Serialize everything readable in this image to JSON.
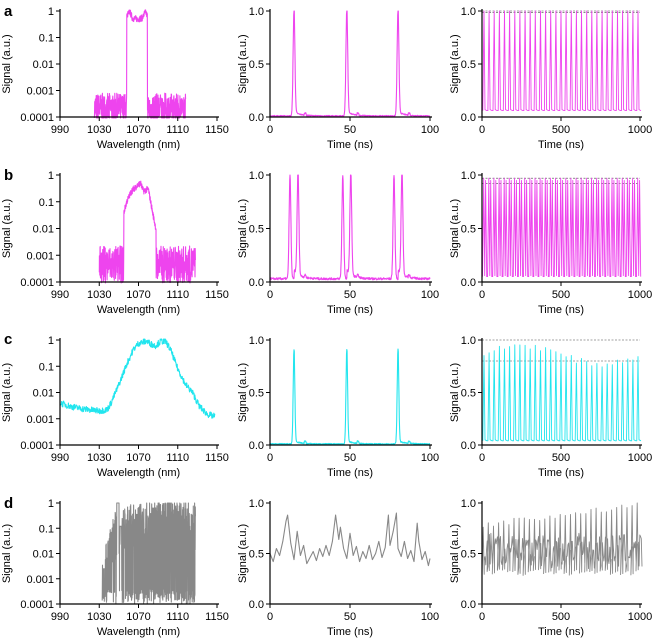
{
  "chart_data": [
    {
      "id": "a1",
      "row": 0,
      "col": 0,
      "type": "line",
      "scale": "log",
      "color": "#ee44ee",
      "xlabel": "Wavelength (nm)",
      "ylabel": "Signal (a.u.)",
      "xlim": [
        990,
        1150
      ],
      "ylim": [
        0.0001,
        1
      ],
      "xticks": [
        "990",
        "1030",
        "1070",
        "1110",
        "1150"
      ],
      "yticks": [
        "0.0001",
        "0.001",
        "0.01",
        "0.1",
        "1"
      ],
      "spectrum": {
        "x0": 1025,
        "x1": 1118,
        "rise": 1058,
        "fall": 1079,
        "floor": 0.0002,
        "noise": 0.6,
        "env": [
          [
            1058,
            0.65
          ],
          [
            1061,
            0.95
          ],
          [
            1064,
            0.52
          ],
          [
            1070,
            0.5
          ],
          [
            1074,
            0.55
          ],
          [
            1077,
            0.95
          ],
          [
            1079,
            0.65
          ]
        ]
      }
    },
    {
      "id": "a2",
      "row": 0,
      "col": 1,
      "type": "line",
      "scale": "linear",
      "color": "#ee44ee",
      "xlabel": "Time (ns)",
      "ylabel": "Signal (a.u.)",
      "xlim": [
        0,
        100
      ],
      "ylim": [
        0,
        1
      ],
      "xticks": [
        "0",
        "50",
        "100"
      ],
      "yticks": [
        "0.0",
        "0.5",
        "1.0"
      ],
      "pulses": {
        "centers": [
          15,
          48,
          80
        ],
        "sub": [
          0
        ],
        "width": 0.55,
        "height": 1.0,
        "base": 0.01,
        "tail": 0.04,
        "noise": 0.005
      }
    },
    {
      "id": "a3",
      "row": 0,
      "col": 2,
      "type": "line",
      "scale": "linear",
      "color": "#ee44ee",
      "xlabel": "Time (ns)",
      "ylabel": "Signal (a.u.)",
      "xlim": [
        0,
        1000
      ],
      "ylim": [
        0,
        1
      ],
      "xticks": [
        "0",
        "500",
        "1000"
      ],
      "yticks": [
        "0.0",
        "0.5",
        "1.0"
      ],
      "train": {
        "period": 32.5,
        "start": 15,
        "top": 1.0,
        "base": 0.06,
        "lines": [
          1.0,
          0.985
        ],
        "mode": "const"
      }
    },
    {
      "id": "b1",
      "row": 1,
      "col": 0,
      "type": "line",
      "scale": "log",
      "color": "#ee44ee",
      "xlabel": "Wavelength (nm)",
      "ylabel": "Signal (a.u.)",
      "xlim": [
        990,
        1150
      ],
      "ylim": [
        0.0001,
        1
      ],
      "xticks": [
        "990",
        "1030",
        "1070",
        "1110",
        "1150"
      ],
      "yticks": [
        "0.0001",
        "0.001",
        "0.01",
        "0.1",
        "1"
      ],
      "spectrum": {
        "x0": 1030,
        "x1": 1128,
        "rise": 1055,
        "fall": 1088,
        "floor": 0.00045,
        "noise": 0.7,
        "env": [
          [
            1048,
            0.003
          ],
          [
            1053,
            0.02
          ],
          [
            1058,
            0.1
          ],
          [
            1063,
            0.25
          ],
          [
            1067,
            0.35
          ],
          [
            1072,
            0.5
          ],
          [
            1075,
            0.25
          ],
          [
            1080,
            0.3
          ],
          [
            1085,
            0.03
          ],
          [
            1090,
            0.004
          ]
        ]
      }
    },
    {
      "id": "b2",
      "row": 1,
      "col": 1,
      "type": "line",
      "scale": "linear",
      "color": "#ee44ee",
      "xlabel": "Time (ns)",
      "ylabel": "Signal (a.u.)",
      "xlim": [
        0,
        100
      ],
      "ylim": [
        0,
        1
      ],
      "xticks": [
        "0",
        "50",
        "100"
      ],
      "yticks": [
        "0.0",
        "0.5",
        "1.0"
      ],
      "pulses": {
        "centers": [
          15,
          48,
          80
        ],
        "sub": [
          -2.5,
          2.5
        ],
        "width": 0.55,
        "height": 0.97,
        "base": 0.03,
        "tail": 0.08,
        "noise": 0.01
      }
    },
    {
      "id": "b3",
      "row": 1,
      "col": 2,
      "type": "line",
      "scale": "linear",
      "color": "#ee44ee",
      "xlabel": "Time (ns)",
      "ylabel": "Signal (a.u.)",
      "xlim": [
        0,
        1000
      ],
      "ylim": [
        0,
        1
      ],
      "xticks": [
        "0",
        "500",
        "1000"
      ],
      "yticks": [
        "0.0",
        "0.5",
        "1.0"
      ],
      "train": {
        "period": 32.5,
        "start": 13,
        "top": 0.97,
        "base": 0.05,
        "lines": [
          0.97,
          0.92
        ],
        "mode": "double"
      }
    },
    {
      "id": "c1",
      "row": 2,
      "col": 0,
      "type": "line",
      "scale": "log",
      "color": "#22e5ee",
      "xlabel": "Wavelength (nm)",
      "ylabel": "Signal (a.u.)",
      "xlim": [
        990,
        1150
      ],
      "ylim": [
        0.0001,
        1
      ],
      "xticks": [
        "990",
        "1030",
        "1070",
        "1110",
        "1150"
      ],
      "yticks": [
        "0.0001",
        "0.001",
        "0.01",
        "0.1",
        "1"
      ],
      "spectrum": {
        "x0": 990,
        "x1": 1148,
        "rise": 990,
        "fall": 1148,
        "floor": 0.0005,
        "noise": 0.45,
        "env": [
          [
            990,
            0.004
          ],
          [
            1000,
            0.003
          ],
          [
            1010,
            0.0025
          ],
          [
            1020,
            0.0022
          ],
          [
            1030,
            0.002
          ],
          [
            1038,
            0.0022
          ],
          [
            1042,
            0.004
          ],
          [
            1050,
            0.02
          ],
          [
            1058,
            0.12
          ],
          [
            1065,
            0.45
          ],
          [
            1070,
            0.75
          ],
          [
            1078,
            0.9
          ],
          [
            1083,
            0.7
          ],
          [
            1087,
            0.6
          ],
          [
            1093,
            0.9
          ],
          [
            1098,
            0.85
          ],
          [
            1103,
            0.4
          ],
          [
            1110,
            0.08
          ],
          [
            1118,
            0.02
          ],
          [
            1125,
            0.01
          ],
          [
            1132,
            0.003
          ],
          [
            1140,
            0.0015
          ],
          [
            1148,
            0.0012
          ]
        ]
      }
    },
    {
      "id": "c2",
      "row": 2,
      "col": 1,
      "type": "line",
      "scale": "linear",
      "color": "#22e5ee",
      "xlabel": "Time (ns)",
      "ylabel": "Signal (a.u.)",
      "xlim": [
        0,
        100
      ],
      "ylim": [
        0,
        1
      ],
      "xticks": [
        "0",
        "50",
        "100"
      ],
      "yticks": [
        "0.0",
        "0.5",
        "1.0"
      ],
      "pulses": {
        "centers": [
          15,
          48,
          80
        ],
        "sub": [
          0
        ],
        "width": 0.5,
        "height": 0.9,
        "base": 0.01,
        "tail": 0.03,
        "noise": 0.005
      }
    },
    {
      "id": "c3",
      "row": 2,
      "col": 2,
      "type": "line",
      "scale": "linear",
      "color": "#22e5ee",
      "xlabel": "Time (ns)",
      "ylabel": "Signal (a.u.)",
      "xlim": [
        0,
        1000
      ],
      "ylim": [
        0,
        1
      ],
      "xticks": [
        "0",
        "500",
        "1000"
      ],
      "yticks": [
        "0.0",
        "0.5",
        "1.0"
      ],
      "train": {
        "period": 32.5,
        "start": 15,
        "top": 0.92,
        "base": 0.04,
        "lines": [
          1.0,
          0.8
        ],
        "mode": "var"
      }
    },
    {
      "id": "d1",
      "row": 3,
      "col": 0,
      "type": "line",
      "scale": "log",
      "color": "#888888",
      "xlabel": "Wavelength (nm)",
      "ylabel": "Signal (a.u.)",
      "xlim": [
        990,
        1150
      ],
      "ylim": [
        0.0001,
        1
      ],
      "xticks": [
        "990",
        "1030",
        "1070",
        "1110",
        "1150"
      ],
      "yticks": [
        "0.0001",
        "0.001",
        "0.01",
        "0.1",
        "1"
      ],
      "spectrum": {
        "x0": 1033,
        "x1": 1128,
        "rise": 1033,
        "fall": 1128,
        "floor": 0.0001,
        "noise": 2.0,
        "dense": true,
        "env": [
          [
            1033,
            0.0004
          ],
          [
            1037,
            0.002
          ],
          [
            1041,
            0.005
          ],
          [
            1046,
            0.02
          ],
          [
            1050,
            0.03
          ],
          [
            1060,
            0.04
          ],
          [
            1075,
            0.05
          ],
          [
            1090,
            0.06
          ],
          [
            1100,
            0.07
          ],
          [
            1115,
            0.06
          ],
          [
            1128,
            0.05
          ]
        ]
      }
    },
    {
      "id": "d2",
      "row": 3,
      "col": 1,
      "type": "line",
      "scale": "linear",
      "color": "#888888",
      "xlabel": "Time (ns)",
      "ylabel": "Signal (a.u.)",
      "xlim": [
        0,
        100
      ],
      "ylim": [
        0,
        1
      ],
      "xticks": [
        "0",
        "50",
        "100"
      ],
      "yticks": [
        "0.0",
        "0.5",
        "1.0"
      ],
      "noisy": {
        "points": [
          [
            0,
            0.5
          ],
          [
            2,
            0.42
          ],
          [
            4,
            0.55
          ],
          [
            6,
            0.48
          ],
          [
            8,
            0.62
          ],
          [
            10,
            0.82
          ],
          [
            11,
            0.88
          ],
          [
            13,
            0.6
          ],
          [
            15,
            0.44
          ],
          [
            17,
            0.72
          ],
          [
            19,
            0.48
          ],
          [
            21,
            0.58
          ],
          [
            23,
            0.4
          ],
          [
            25,
            0.46
          ],
          [
            27,
            0.52
          ],
          [
            29,
            0.43
          ],
          [
            31,
            0.55
          ],
          [
            33,
            0.47
          ],
          [
            35,
            0.58
          ],
          [
            37,
            0.48
          ],
          [
            39,
            0.62
          ],
          [
            41,
            0.88
          ],
          [
            43,
            0.64
          ],
          [
            44,
            0.76
          ],
          [
            46,
            0.55
          ],
          [
            48,
            0.45
          ],
          [
            50,
            0.7
          ],
          [
            52,
            0.48
          ],
          [
            54,
            0.57
          ],
          [
            56,
            0.42
          ],
          [
            58,
            0.52
          ],
          [
            60,
            0.45
          ],
          [
            62,
            0.58
          ],
          [
            64,
            0.44
          ],
          [
            66,
            0.5
          ],
          [
            68,
            0.62
          ],
          [
            70,
            0.46
          ],
          [
            72,
            0.56
          ],
          [
            74,
            0.88
          ],
          [
            75,
            0.58
          ],
          [
            77,
            0.72
          ],
          [
            79,
            0.9
          ],
          [
            80,
            0.55
          ],
          [
            82,
            0.47
          ],
          [
            84,
            0.62
          ],
          [
            86,
            0.45
          ],
          [
            88,
            0.53
          ],
          [
            90,
            0.42
          ],
          [
            92,
            0.8
          ],
          [
            93,
            0.62
          ],
          [
            95,
            0.44
          ],
          [
            97,
            0.52
          ],
          [
            99,
            0.38
          ],
          [
            100,
            0.45
          ]
        ]
      }
    },
    {
      "id": "d3",
      "row": 3,
      "col": 2,
      "type": "line",
      "scale": "linear",
      "color": "#888888",
      "xlabel": "Time (ns)",
      "ylabel": "Signal (a.u.)",
      "xlim": [
        0,
        1000
      ],
      "ylim": [
        0,
        1
      ],
      "xticks": [
        "0",
        "500",
        "1000"
      ],
      "yticks": [
        "0.0",
        "0.5",
        "1.0"
      ],
      "train": {
        "period": 32.5,
        "start": 10,
        "top": 0.9,
        "base": 0.3,
        "lines": [],
        "mode": "gray"
      }
    }
  ],
  "panel_labels": [
    "a",
    "b",
    "c",
    "d"
  ]
}
